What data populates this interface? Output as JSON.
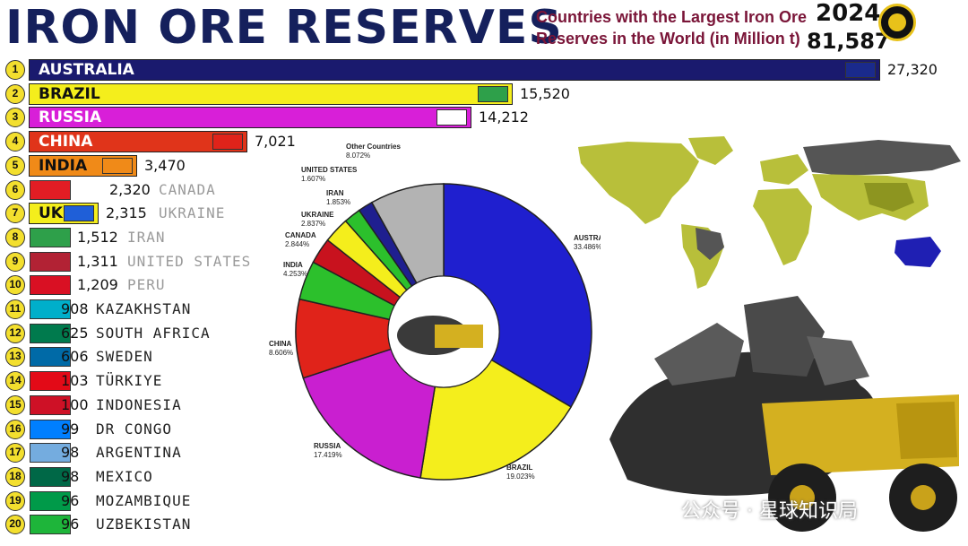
{
  "header": {
    "title": "IRON ORE RESERVES",
    "subtitle": "Countries with the Largest Iron Ore Reserves in the World (in Million t)",
    "year": "2024",
    "total": "81,587"
  },
  "watermark": "公众号 · 星球知识局",
  "chart_data": [
    {
      "type": "bar",
      "title": "IRON ORE RESERVES",
      "subtitle": "Countries with the Largest Iron Ore Reserves in the World (in Million t)",
      "unit": "Million t",
      "categories": [
        "AUSTRALIA",
        "BRAZIL",
        "RUSSIA",
        "CHINA",
        "INDIA",
        "CANADA",
        "UKRAINE",
        "IRAN",
        "UNITED STATES",
        "PERU",
        "KAZAKHSTAN",
        "SOUTH AFRICA",
        "SWEDEN",
        "TÜRKIYE",
        "INDONESIA",
        "DR CONGO",
        "ARGENTINA",
        "MEXICO",
        "MOZAMBIQUE",
        "UZBEKISTAN"
      ],
      "ranks": [
        "1",
        "2",
        "3",
        "4",
        "5",
        "6",
        "7",
        "8",
        "9",
        "10",
        "11",
        "12",
        "13",
        "14",
        "15",
        "16",
        "17",
        "18",
        "19",
        "20"
      ],
      "inside_labels": [
        "AUSTRALIA",
        "BRAZIL",
        "RUSSIA",
        "CHINA",
        "INDIA",
        "",
        "UK",
        "",
        "",
        "",
        "",
        "",
        "",
        "",
        "",
        "",
        "",
        "",
        "",
        ""
      ],
      "values": [
        27320,
        15520,
        14212,
        7021,
        3470,
        2320,
        2315,
        1512,
        1311,
        1209,
        908,
        625,
        606,
        103,
        100,
        99,
        98,
        98,
        96,
        96
      ],
      "value_labels": [
        "27,320",
        "15,520",
        "14,212",
        "7,021",
        "3,470",
        "2,320",
        "2,315",
        "1,512",
        "1,311",
        "1,209",
        "908",
        "625",
        "606",
        "103",
        "100",
        "99",
        "98",
        "98",
        "96",
        "96"
      ],
      "bar_colors": [
        "#1a1a6e",
        "#f4ee1c",
        "#d81fd8",
        "#e0341a",
        "#f08a18",
        "#e21d24",
        "#f4ee1c",
        "#1a1a6e",
        "#1a1a6e",
        "#1a1a6e",
        "#1a1a6e",
        "#1a1a6e",
        "#1a1a6e",
        "#1a1a6e",
        "#1a1a6e",
        "#1a1a6e",
        "#1a1a6e",
        "#1a1a6e",
        "#1a1a6e",
        "#1a1a6e"
      ],
      "flag_icons": [
        "australia-flag-icon",
        "brazil-flag-icon",
        "russia-flag-icon",
        "china-flag-icon",
        "india-flag-icon",
        "canada-flag-icon",
        "ukraine-flag-icon",
        "iran-flag-icon",
        "united-states-flag-icon",
        "peru-flag-icon",
        "kazakhstan-flag-icon",
        "south-africa-flag-icon",
        "sweden-flag-icon",
        "turkiye-flag-icon",
        "indonesia-flag-icon",
        "dr-congo-flag-icon",
        "argentina-flag-icon",
        "mexico-flag-icon",
        "mozambique-flag-icon",
        "uzbekistan-flag-icon"
      ]
    },
    {
      "type": "pie",
      "style": "donut",
      "slices": [
        {
          "label": "AUSTRALIA",
          "percent_label": "33.486%",
          "value": 33.486,
          "color": "#1f1fcf"
        },
        {
          "label": "BRAZIL",
          "percent_label": "19.023%",
          "value": 19.023,
          "color": "#f4ee1c"
        },
        {
          "label": "RUSSIA",
          "percent_label": "17.419%",
          "value": 17.419,
          "color": "#c91fd0"
        },
        {
          "label": "CHINA",
          "percent_label": "8.606%",
          "value": 8.606,
          "color": "#e0231a"
        },
        {
          "label": "INDIA",
          "percent_label": "4.253%",
          "value": 4.253,
          "color": "#2cc02c"
        },
        {
          "label": "CANADA",
          "percent_label": "2.844%",
          "value": 2.844,
          "color": "#c8121e"
        },
        {
          "label": "UKRAINE",
          "percent_label": "2.837%",
          "value": 2.837,
          "color": "#f4ee1c"
        },
        {
          "label": "IRAN",
          "percent_label": "1.853%",
          "value": 1.853,
          "color": "#2cc02c"
        },
        {
          "label": "UNITED STATES",
          "percent_label": "1.607%",
          "value": 1.607,
          "color": "#1f1f8f"
        },
        {
          "label": "Other Countries",
          "percent_label": "8.072%",
          "value": 8.072,
          "color": "#b3b3b3"
        }
      ]
    }
  ]
}
